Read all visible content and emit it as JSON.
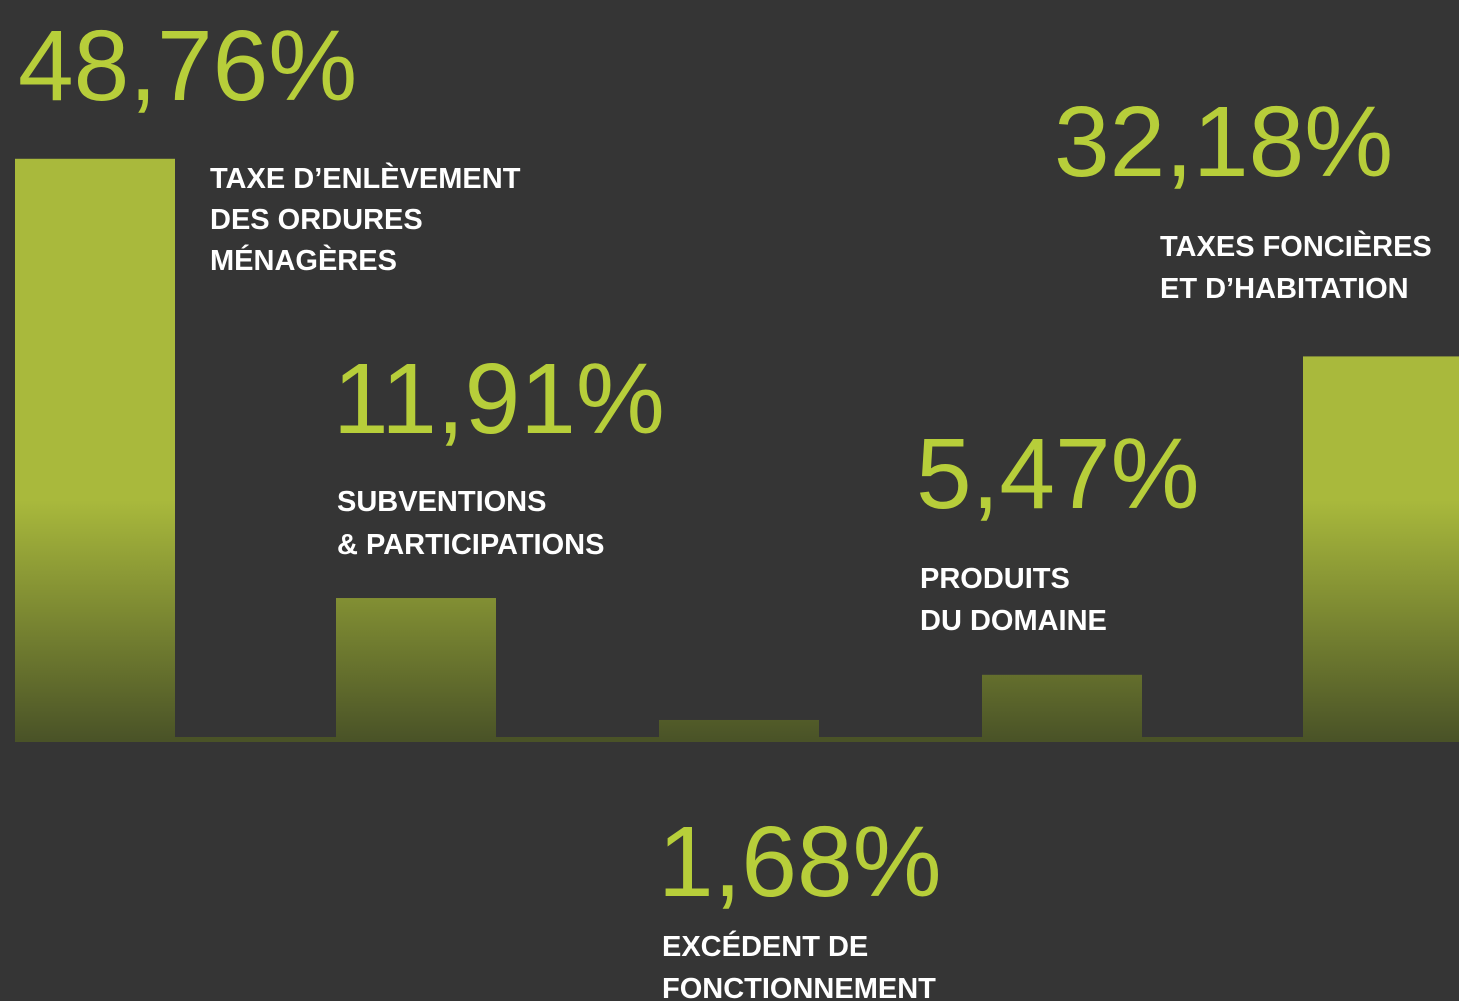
{
  "chart_data": {
    "type": "bar",
    "categories": [
      [
        "TAXE D’ENLÈVEMENT",
        "DES ORDURES",
        "MÉNAGÈRES"
      ],
      [
        "SUBVENTIONS",
        "& PARTICIPATIONS"
      ],
      [
        "EXCÉDENT DE",
        "FONCTIONNEMENT"
      ],
      [
        "PRODUITS",
        "DU DOMAINE"
      ],
      [
        "TAXES FONCIÈRES",
        "ET D’HABITATION"
      ]
    ],
    "values": [
      48.76,
      11.91,
      1.68,
      5.47,
      32.18
    ],
    "value_labels": [
      "48,76%",
      "11,91%",
      "1,68%",
      "5,47%",
      "32,18%"
    ],
    "color": "#a9b93c"
  }
}
